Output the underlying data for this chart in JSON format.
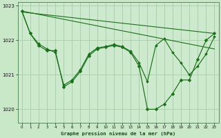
{
  "bg_color": "#c8e8c8",
  "plot_bg_color": "#ceeace",
  "grid_color": "#a8cca8",
  "line_color": "#1a6e1a",
  "title": "Graphe pression niveau de la mer (hPa)",
  "xlim": [
    -0.5,
    23.5
  ],
  "ylim": [
    1019.6,
    1023.1
  ],
  "yticks": [
    1020,
    1021,
    1022,
    1023
  ],
  "xticks": [
    0,
    1,
    2,
    3,
    4,
    5,
    6,
    7,
    8,
    9,
    10,
    11,
    12,
    13,
    14,
    15,
    16,
    17,
    18,
    19,
    20,
    21,
    22,
    23
  ],
  "series_main_x": [
    0,
    1,
    2,
    3,
    4,
    5,
    6,
    7,
    8,
    9,
    10,
    11,
    12,
    13,
    14,
    15,
    16,
    17,
    18,
    19,
    20,
    21,
    22,
    23
  ],
  "series_main_y": [
    1022.85,
    1022.2,
    1021.85,
    1021.7,
    1021.7,
    1020.65,
    1020.8,
    1021.1,
    1021.55,
    1021.75,
    1021.8,
    1021.85,
    1021.8,
    1021.65,
    1021.25,
    1020.0,
    1020.0,
    1020.15,
    1020.45,
    1020.85,
    1020.85,
    1021.45,
    1022.0,
    1022.2
  ],
  "series2_x": [
    0,
    1,
    2,
    3,
    4,
    5,
    6,
    7,
    8,
    9,
    10,
    11,
    12,
    13,
    14,
    15,
    16,
    17,
    18,
    19,
    20,
    21,
    22,
    23
  ],
  "series2_y": [
    1022.85,
    1022.2,
    1021.9,
    1021.75,
    1021.65,
    1020.7,
    1020.85,
    1021.15,
    1021.6,
    1021.78,
    1021.82,
    1021.88,
    1021.82,
    1021.68,
    1021.35,
    1020.8,
    1021.85,
    1022.05,
    1021.65,
    1021.35,
    1021.0,
    1021.25,
    1021.6,
    1022.1
  ],
  "trend1_x": [
    0,
    23
  ],
  "trend1_y": [
    1022.85,
    1021.75
  ],
  "trend2_x": [
    0,
    23
  ],
  "trend2_y": [
    1022.82,
    1022.2
  ]
}
